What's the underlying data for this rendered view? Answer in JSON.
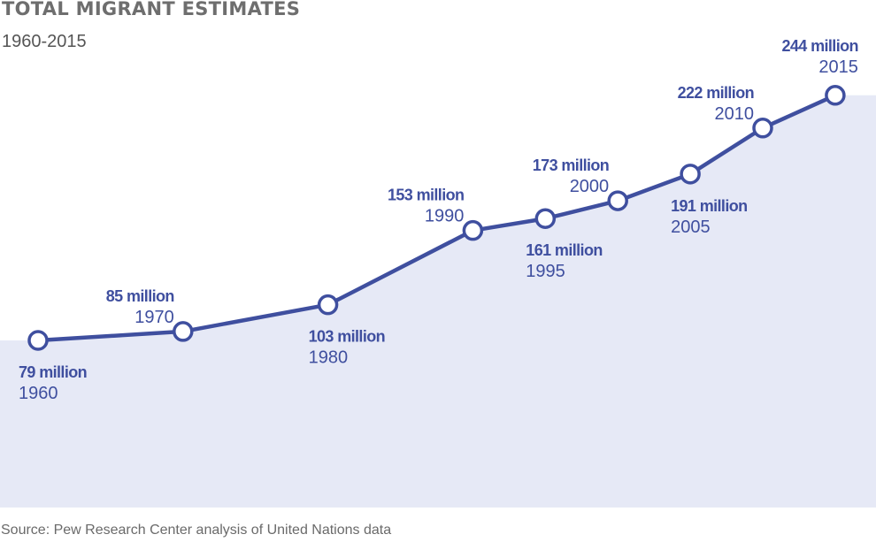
{
  "title": "TOTAL MIGRANT ESTIMATES",
  "subtitle": "1960-2015",
  "source": "Source: Pew Research Center analysis of United Nations data",
  "colors": {
    "line": "#3f4f9f",
    "area": "#e6e9f6",
    "marker_fill": "#ffffff",
    "value_label": "#3f4f9f",
    "year_label": "#3f4f9f"
  },
  "chart_data": {
    "type": "area",
    "title": "TOTAL MIGRANT ESTIMATES",
    "subtitle": "1960-2015",
    "xlabel": "",
    "ylabel": "",
    "units": "million",
    "grid": false,
    "x": [
      1960,
      1970,
      1980,
      1990,
      1995,
      2000,
      2005,
      2010,
      2015
    ],
    "values": [
      79,
      85,
      103,
      153,
      161,
      173,
      191,
      222,
      244
    ],
    "value_labels": [
      "79 million",
      "85 million",
      "103 million",
      "153 million",
      "161 million",
      "173 million",
      "191 million",
      "222 million",
      "244 million"
    ],
    "year_labels": [
      "1960",
      "1970",
      "1980",
      "1990",
      "1995",
      "2000",
      "2005",
      "2010",
      "2015"
    ],
    "label_positions": [
      "below",
      "above",
      "below",
      "above",
      "below",
      "above",
      "below",
      "above",
      "above"
    ]
  }
}
